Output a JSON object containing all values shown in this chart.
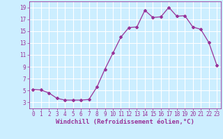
{
  "x": [
    0,
    1,
    2,
    3,
    4,
    5,
    6,
    7,
    8,
    9,
    10,
    11,
    12,
    13,
    14,
    15,
    16,
    17,
    18,
    19,
    20,
    21,
    22,
    23
  ],
  "y": [
    5.2,
    5.1,
    4.6,
    3.7,
    3.4,
    3.4,
    3.4,
    3.5,
    5.6,
    8.6,
    11.3,
    14.0,
    15.6,
    15.7,
    18.5,
    17.3,
    17.4,
    19.0,
    17.5,
    17.6,
    15.7,
    15.3,
    13.1,
    9.3
  ],
  "line_color": "#993399",
  "marker": "D",
  "marker_size": 2.0,
  "linewidth": 0.9,
  "bg_color": "#cceeff",
  "grid_color": "#ffffff",
  "xlabel": "Windchill (Refroidissement éolien,°C)",
  "xlabel_fontsize": 6.5,
  "tick_color": "#993399",
  "tick_fontsize": 5.5,
  "xlim": [
    -0.5,
    23.5
  ],
  "ylim": [
    2.0,
    20.0
  ],
  "yticks": [
    3,
    5,
    7,
    9,
    11,
    13,
    15,
    17,
    19
  ],
  "xticks": [
    0,
    1,
    2,
    3,
    4,
    5,
    6,
    7,
    8,
    9,
    10,
    11,
    12,
    13,
    14,
    15,
    16,
    17,
    18,
    19,
    20,
    21,
    22,
    23
  ]
}
